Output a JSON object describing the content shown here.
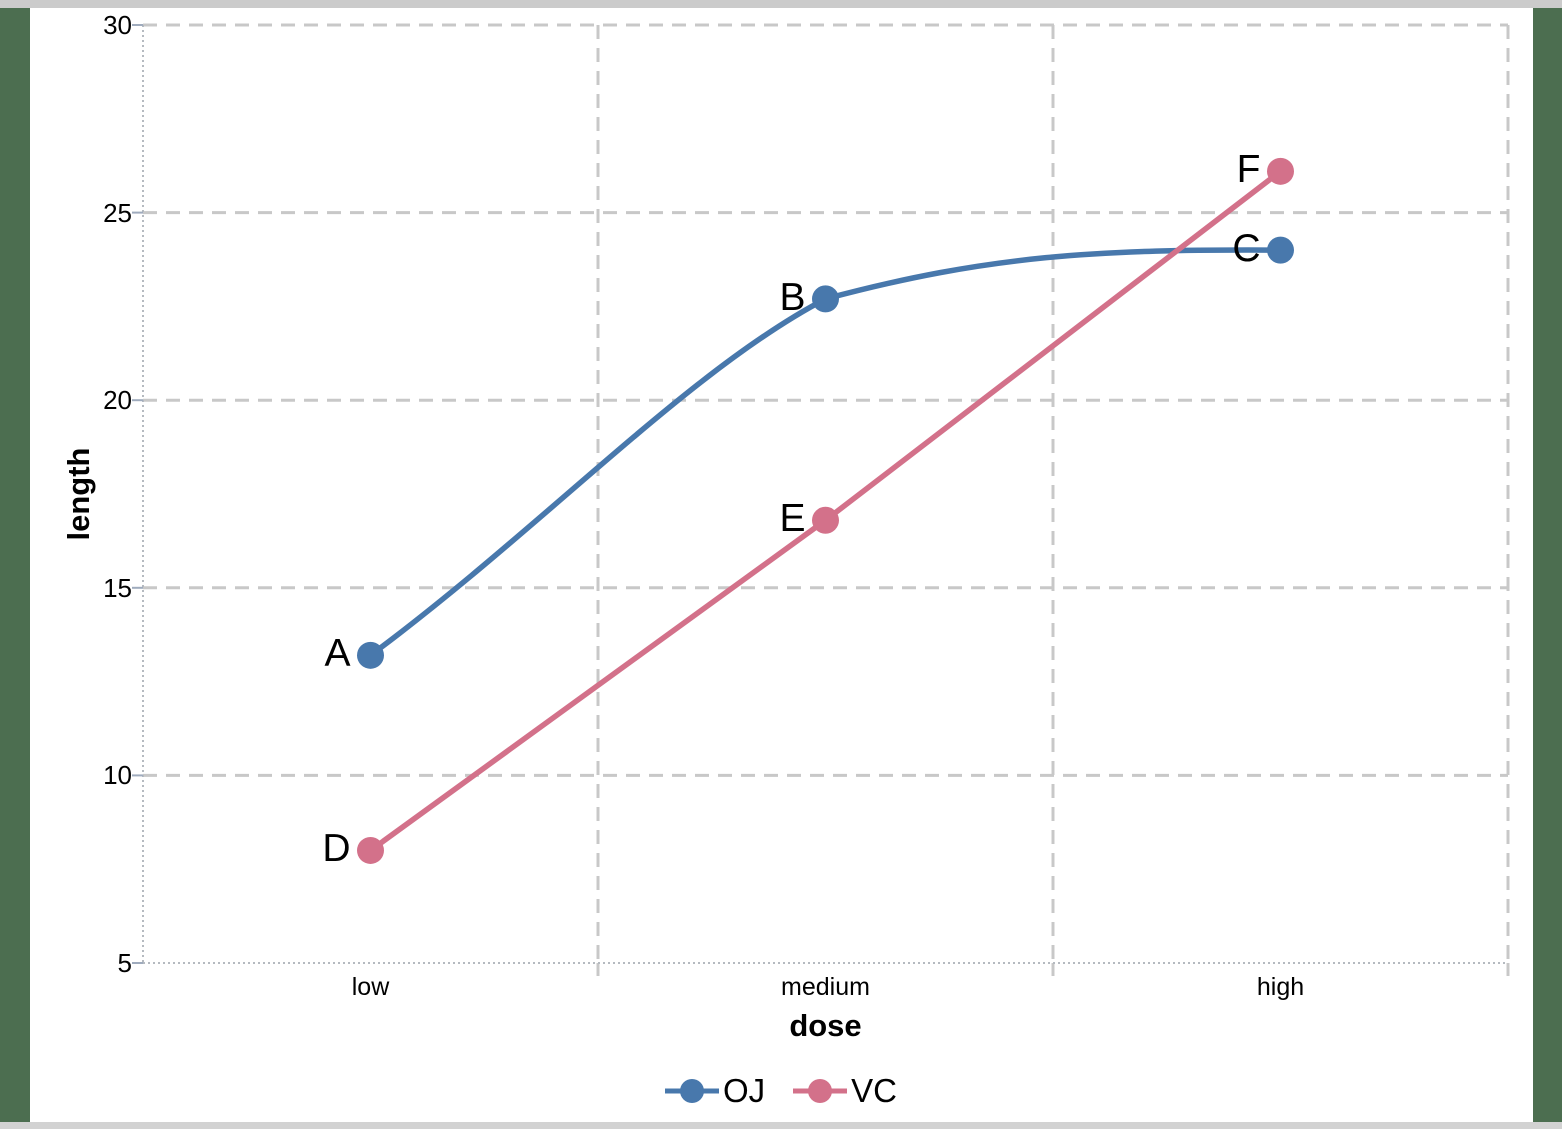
{
  "page": {
    "background": "#ffffff",
    "border_side_color": "#4c6e50",
    "border_top_color": "#cbcbcb",
    "border_bottom_color": "#d2d2d2"
  },
  "chart_data": {
    "type": "line",
    "title": "",
    "xlabel": "dose",
    "ylabel": "length",
    "categories": [
      "low",
      "medium",
      "high"
    ],
    "series": [
      {
        "name": "OJ",
        "color": "#4878ac",
        "values": [
          13.2,
          22.7,
          24.0
        ],
        "point_labels": [
          "A",
          "B",
          "C"
        ],
        "smooth": true
      },
      {
        "name": "VC",
        "color": "#d3718a",
        "values": [
          8.0,
          16.8,
          26.1
        ],
        "point_labels": [
          "D",
          "E",
          "F"
        ],
        "smooth": false
      }
    ],
    "ylim": [
      5,
      30
    ],
    "yticks": [
      5,
      10,
      15,
      20,
      25,
      30
    ],
    "grid": "dashed",
    "grid_color": "#c8c8c8",
    "axis_color": "#b5bac0",
    "tick_color": "#9fabbd",
    "legend_position": "bottom"
  }
}
